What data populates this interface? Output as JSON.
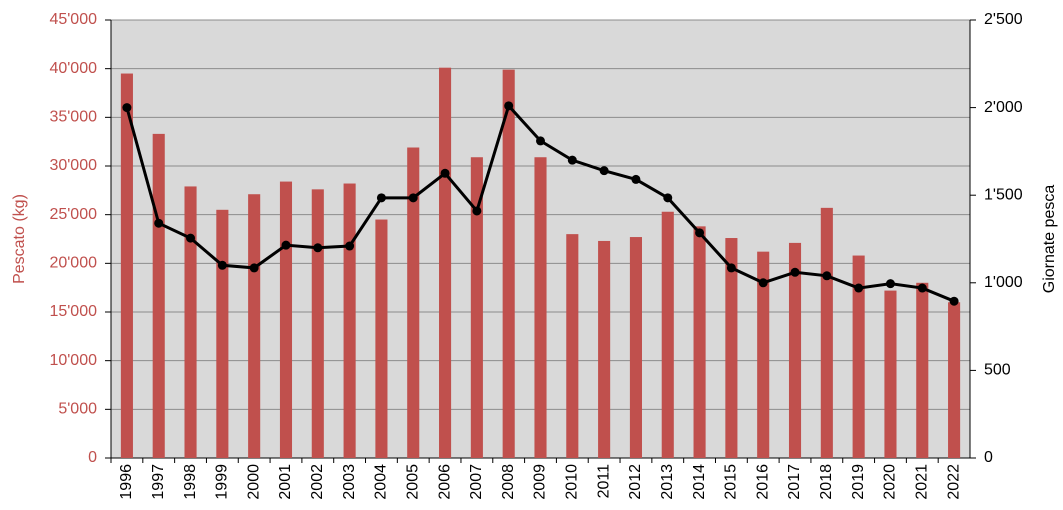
{
  "chart_data": {
    "type": "bar-line",
    "y_label": "Pescato (kg)",
    "y2_label": "Giornate pesca",
    "categories": [
      "1996",
      "1997",
      "1998",
      "1999",
      "2000",
      "2001",
      "2002",
      "2003",
      "2004",
      "2005",
      "2006",
      "2007",
      "2008",
      "2009",
      "2010",
      "2011",
      "2012",
      "2013",
      "2014",
      "2015",
      "2016",
      "2017",
      "2018",
      "2019",
      "2020",
      "2021",
      "2022"
    ],
    "series": [
      {
        "type": "bar",
        "color": "#c0504d",
        "axis": "y",
        "values": [
          39500,
          33300,
          27900,
          25500,
          27100,
          28400,
          27600,
          28200,
          24500,
          31900,
          40100,
          30900,
          39900,
          30900,
          23000,
          22300,
          22700,
          25300,
          23800,
          22600,
          21200,
          22100,
          25700,
          20800,
          17200,
          18000,
          16000
        ]
      },
      {
        "type": "line",
        "color": "#000000",
        "axis": "y2",
        "values": [
          2000,
          1340,
          1255,
          1100,
          1085,
          1215,
          1200,
          1210,
          1485,
          1485,
          1625,
          1410,
          2010,
          1810,
          1700,
          1640,
          1590,
          1485,
          1285,
          1085,
          1000,
          1060,
          1040,
          970,
          995,
          970,
          895
        ]
      }
    ],
    "ylim": [
      0,
      45000
    ],
    "yticks": [
      0,
      {
        "value": 5000,
        "label": "5'000"
      },
      {
        "value": 10000,
        "label": "10'000"
      },
      {
        "value": 15000,
        "label": "15'000"
      },
      {
        "value": 20000,
        "label": "20'000"
      },
      {
        "value": 25000,
        "label": "25'000"
      },
      {
        "value": 30000,
        "label": "30'000"
      },
      {
        "value": 35000,
        "label": "35'000"
      },
      {
        "value": 40000,
        "label": "40'000"
      },
      {
        "value": 45000,
        "label": "45'000"
      }
    ],
    "y2lim": [
      0,
      2500
    ],
    "y2ticks": [
      0,
      500,
      {
        "value": 1000,
        "label": "1'000"
      },
      {
        "value": 1500,
        "label": "1'500"
      },
      {
        "value": 2000,
        "label": "2'000"
      },
      {
        "value": 2500,
        "label": "2'500"
      }
    ],
    "y_tick_color": "#c0504d",
    "plot_background": "#d9d9d9",
    "grid": true
  }
}
